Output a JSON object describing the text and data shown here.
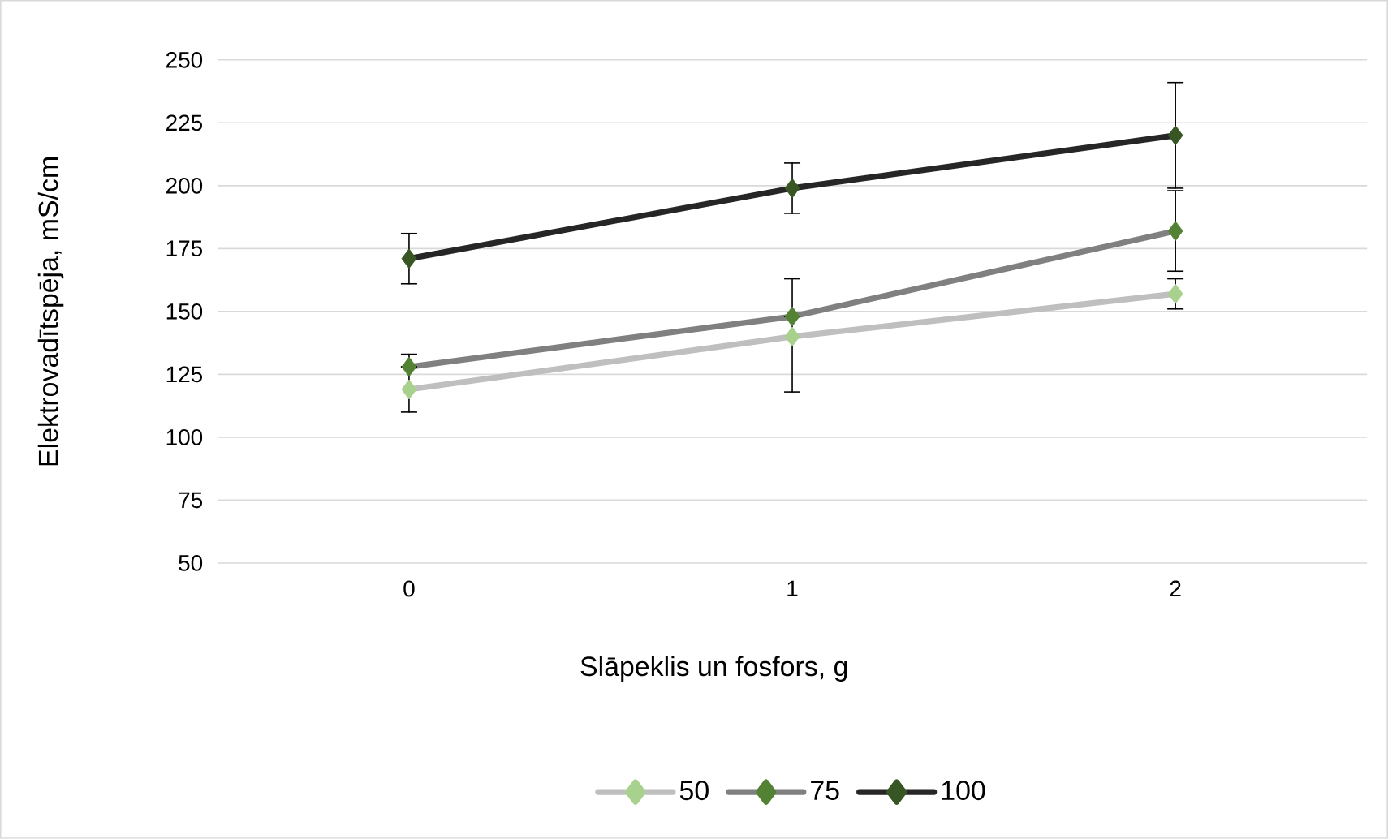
{
  "chart_data": {
    "type": "line",
    "xlabel": "Slāpeklis un fosfors, g",
    "ylabel": "Elektrovadītspēja, mS/cm",
    "categories": [
      "0",
      "1",
      "2"
    ],
    "series": [
      {
        "name": "50",
        "color": "#bfbfbf",
        "colors": [
          "#a9d18e",
          "#a9d18e",
          "#a9d18e"
        ],
        "values": [
          119,
          140,
          157
        ],
        "errors": [
          [
            110,
            133
          ],
          [
            118,
            163
          ],
          6
        ]
      },
      {
        "name": "75",
        "color": "#808080",
        "colors": [
          "#548235",
          "#548235",
          "#548235"
        ],
        "values": [
          128,
          148,
          182
        ],
        "errors": [
          null,
          null,
          16
        ]
      },
      {
        "name": "100",
        "color": "#262626",
        "colors": [
          "#375623",
          "#375623",
          "#375623"
        ],
        "values": [
          171,
          199,
          220
        ],
        "errors": [
          10,
          10,
          21
        ]
      }
    ],
    "ylim": [
      50,
      250
    ],
    "yticks": [
      50,
      75,
      100,
      125,
      150,
      175,
      200,
      225,
      250
    ],
    "grid": "y",
    "legend": "bottom",
    "marker": "diamond",
    "line_style": "solid"
  }
}
